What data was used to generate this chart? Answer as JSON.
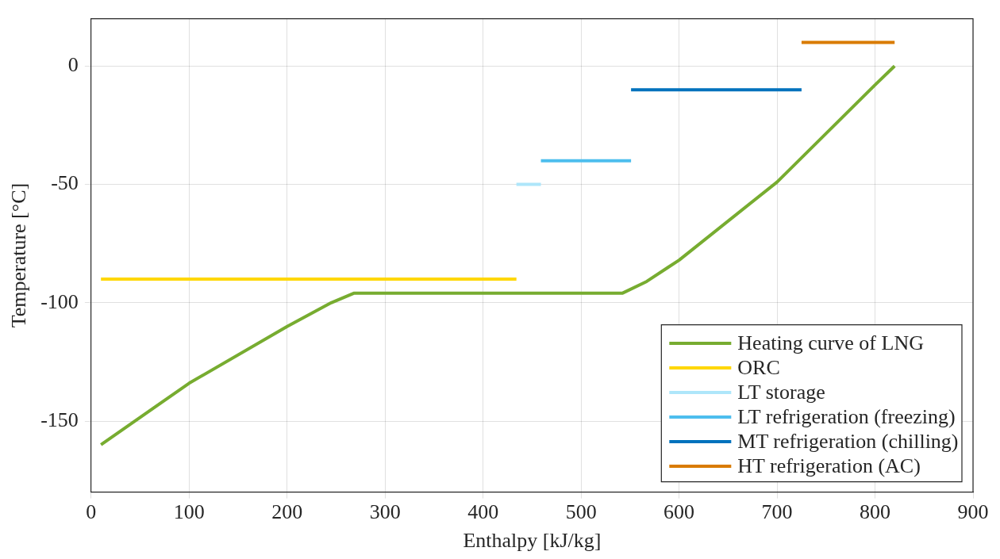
{
  "chart_data": {
    "type": "line",
    "xlabel": "Enthalpy [kJ/kg]",
    "ylabel": "Temperature [°C]",
    "xlim": [
      0,
      900
    ],
    "xticks": [
      0,
      100,
      200,
      300,
      400,
      500,
      600,
      700,
      800,
      900
    ],
    "ylim": [
      -180,
      20
    ],
    "yticks": [
      -150,
      -100,
      -50,
      0
    ],
    "grid": true,
    "legend": "bottom right",
    "marker": "none",
    "line_style": "solid",
    "series": [
      {
        "name": "Heating curve of LNG",
        "color": "#77ac30",
        "x": [
          10,
          100,
          200,
          245,
          268,
          542,
          567,
          589,
          600,
          700,
          800,
          820
        ],
        "values": [
          -160,
          -134,
          -110,
          -100,
          -96,
          -96,
          -91,
          -85,
          -82,
          -49,
          -8,
          0
        ]
      },
      {
        "name": "ORC",
        "color": "#ffd700",
        "x": [
          10,
          434
        ],
        "values": [
          -90,
          -90
        ]
      },
      {
        "name": "LT storage",
        "color": "#aee6fa",
        "x": [
          434,
          459
        ],
        "values": [
          -50,
          -50
        ]
      },
      {
        "name": "LT refrigeration (freezing)",
        "color": "#4dbeee",
        "x": [
          459,
          551
        ],
        "values": [
          -40,
          -40
        ]
      },
      {
        "name": "MT refrigeration (chilling)",
        "color": "#0072bd",
        "x": [
          551,
          725
        ],
        "values": [
          -10,
          -10
        ]
      },
      {
        "name": "HT refrigeration (AC)",
        "color": "#d97b00",
        "x": [
          725,
          820
        ],
        "values": [
          10,
          10
        ]
      }
    ]
  }
}
